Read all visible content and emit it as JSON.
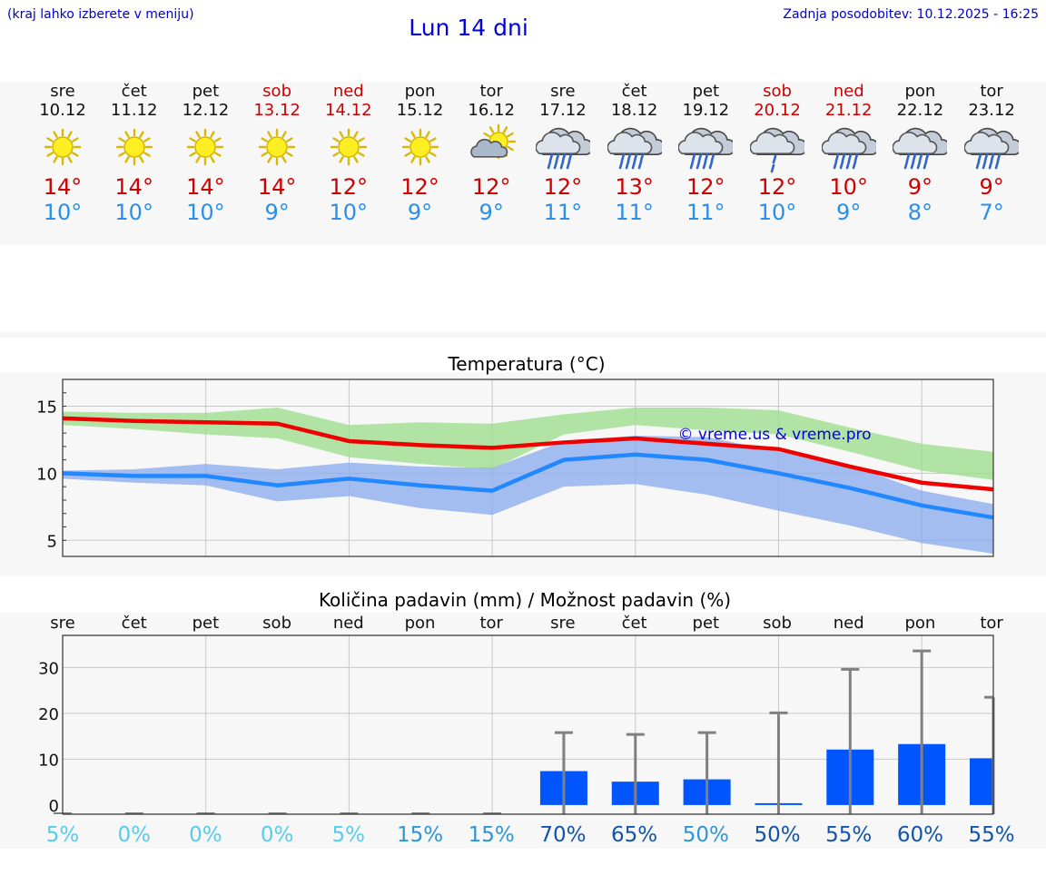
{
  "header": {
    "note": "(kraj lahko izberete v meniju)",
    "title": "Lun 14 dni",
    "update": "Zadnja posodobitev: 10.12.2025 - 16:25"
  },
  "days": [
    {
      "name": "sre",
      "date": "10.12",
      "weekend": false,
      "icon": "sun-icon",
      "tmax": "14°",
      "tmin": "10°"
    },
    {
      "name": "čet",
      "date": "11.12",
      "weekend": false,
      "icon": "sun-icon",
      "tmax": "14°",
      "tmin": "10°"
    },
    {
      "name": "pet",
      "date": "12.12",
      "weekend": false,
      "icon": "sun-icon",
      "tmax": "14°",
      "tmin": "10°"
    },
    {
      "name": "sob",
      "date": "13.12",
      "weekend": true,
      "icon": "sun-icon",
      "tmax": "14°",
      "tmin": "9°"
    },
    {
      "name": "ned",
      "date": "14.12",
      "weekend": true,
      "icon": "sun-icon",
      "tmax": "12°",
      "tmin": "10°"
    },
    {
      "name": "pon",
      "date": "15.12",
      "weekend": false,
      "icon": "sun-icon",
      "tmax": "12°",
      "tmin": "9°"
    },
    {
      "name": "tor",
      "date": "16.12",
      "weekend": false,
      "icon": "sun-cloud-icon",
      "tmax": "12°",
      "tmin": "9°"
    },
    {
      "name": "sre",
      "date": "17.12",
      "weekend": false,
      "icon": "rain-cloud-icon",
      "tmax": "12°",
      "tmin": "11°"
    },
    {
      "name": "čet",
      "date": "18.12",
      "weekend": false,
      "icon": "rain-cloud-icon",
      "tmax": "13°",
      "tmin": "11°"
    },
    {
      "name": "pet",
      "date": "19.12",
      "weekend": false,
      "icon": "rain-cloud-icon",
      "tmax": "12°",
      "tmin": "11°"
    },
    {
      "name": "sob",
      "date": "20.12",
      "weekend": true,
      "icon": "rain-cloud-light-icon",
      "tmax": "12°",
      "tmin": "10°"
    },
    {
      "name": "ned",
      "date": "21.12",
      "weekend": true,
      "icon": "rain-cloud-icon",
      "tmax": "10°",
      "tmin": "9°"
    },
    {
      "name": "pon",
      "date": "22.12",
      "weekend": false,
      "icon": "rain-cloud-icon",
      "tmax": "9°",
      "tmin": "8°"
    },
    {
      "name": "tor",
      "date": "23.12",
      "weekend": false,
      "icon": "rain-cloud-icon",
      "tmax": "9°",
      "tmin": "7°"
    }
  ],
  "colors": {
    "weekend": "#cc0000",
    "tmax_line": "#ee0000",
    "tmin_line": "#2288ff",
    "tmax_band": "#99dd88",
    "tmin_band": "#88aaee",
    "bar": "#0055ff",
    "whisker": "#808080"
  },
  "chart_data": [
    {
      "type": "line",
      "title": "Temperatura (°C)",
      "watermark": "© vreme.us & vreme.pro",
      "ylim": [
        3.8,
        17
      ],
      "yticks": [
        5,
        10,
        15
      ],
      "x": [
        0,
        1,
        2,
        3,
        4,
        5,
        6,
        7,
        8,
        9,
        10,
        11,
        12,
        13
      ],
      "series": [
        {
          "name": "max",
          "values": [
            14.1,
            13.9,
            13.8,
            13.7,
            12.4,
            12.1,
            11.9,
            12.3,
            12.6,
            12.2,
            11.8,
            10.5,
            9.3,
            8.8
          ]
        },
        {
          "name": "max_band_high",
          "values": [
            14.6,
            14.5,
            14.5,
            14.9,
            13.6,
            13.8,
            13.7,
            14.4,
            14.9,
            14.9,
            14.7,
            13.4,
            12.2,
            11.6
          ]
        },
        {
          "name": "max_band_low",
          "values": [
            13.6,
            13.3,
            12.9,
            12.6,
            11.2,
            10.7,
            10.3,
            12.9,
            13.6,
            13.2,
            12.9,
            11.6,
            10.2,
            9.5
          ]
        },
        {
          "name": "min",
          "values": [
            10.0,
            9.8,
            9.8,
            9.1,
            9.6,
            9.1,
            8.7,
            11.0,
            11.4,
            11.0,
            10.0,
            8.9,
            7.6,
            6.7
          ]
        },
        {
          "name": "min_band_high",
          "values": [
            10.2,
            10.3,
            10.7,
            10.3,
            10.8,
            10.5,
            10.4,
            12.4,
            12.8,
            12.7,
            11.6,
            10.6,
            8.7,
            7.7
          ]
        },
        {
          "name": "min_band_low",
          "values": [
            9.6,
            9.3,
            9.1,
            7.9,
            8.3,
            7.4,
            6.9,
            9.0,
            9.2,
            8.4,
            7.2,
            6.1,
            4.8,
            4.0
          ]
        }
      ]
    },
    {
      "type": "bar",
      "title": "Količina padavin (mm) / Možnost padavin (%)",
      "ylim": [
        -2,
        37
      ],
      "yticks": [
        0,
        10,
        20,
        30
      ],
      "categories": [
        "sre",
        "čet",
        "pet",
        "sob",
        "ned",
        "pon",
        "tor",
        "sre",
        "čet",
        "pet",
        "sob",
        "ned",
        "pon",
        "tor"
      ],
      "values": [
        0,
        0,
        0,
        0,
        0,
        0,
        0,
        7.4,
        5.1,
        5.6,
        0.4,
        12.1,
        13.3,
        10.2
      ],
      "whisker_high": [
        0,
        0,
        0,
        0,
        0,
        0,
        0,
        15.8,
        15.4,
        15.8,
        20.1,
        29.6,
        33.6,
        23.5
      ],
      "probabilities": [
        "5%",
        "0%",
        "0%",
        "0%",
        "5%",
        "15%",
        "15%",
        "70%",
        "65%",
        "50%",
        "50%",
        "55%",
        "60%",
        "55%"
      ],
      "probability_colors": [
        "#55ccee",
        "#55ccee",
        "#55ccee",
        "#55ccee",
        "#55ccee",
        "#2c96d6",
        "#2c96d6",
        "#1155aa",
        "#1155aa",
        "#2c96d6",
        "#1155aa",
        "#1155aa",
        "#1155aa",
        "#1155aa"
      ]
    }
  ]
}
